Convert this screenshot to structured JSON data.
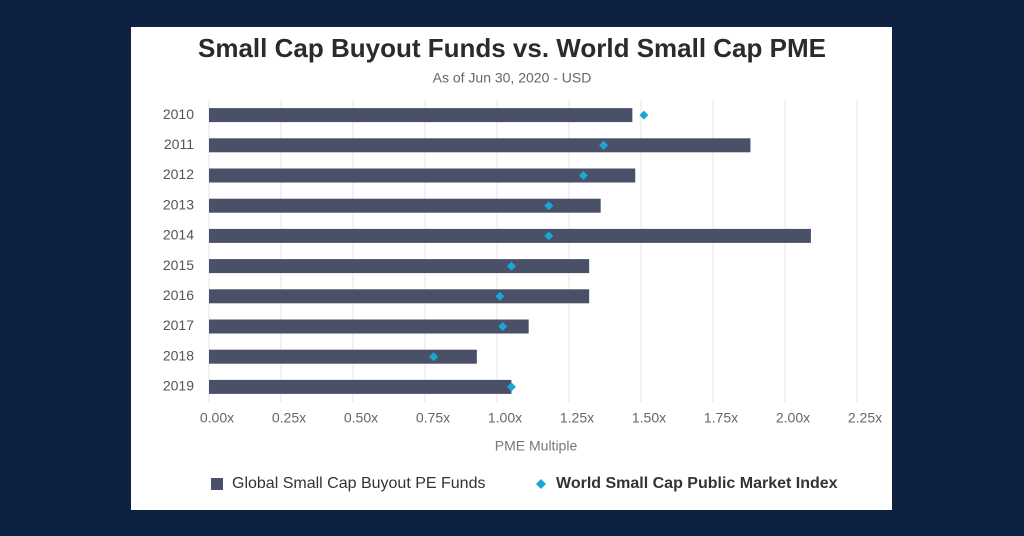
{
  "chart_data": {
    "type": "bar",
    "orientation": "horizontal",
    "title": "Small Cap Buyout Funds vs. World Small Cap PME",
    "subtitle": "As of Jun 30, 2020 - USD",
    "x_label": "PME Multiple",
    "categories": [
      "2010",
      "2011",
      "2012",
      "2013",
      "2014",
      "2015",
      "2016",
      "2017",
      "2018",
      "2019"
    ],
    "series": [
      {
        "name": "Global Small Cap Buyout PE Funds",
        "color": "#4a5068",
        "mark": "bar",
        "values": [
          1.47,
          1.88,
          1.48,
          1.36,
          2.09,
          1.32,
          1.32,
          1.11,
          0.93,
          1.05
        ]
      },
      {
        "name": "World Small Cap Public Market Index",
        "color": "#1aa7d6",
        "mark": "diamond",
        "values": [
          1.51,
          1.37,
          1.3,
          1.18,
          1.18,
          1.05,
          1.01,
          1.02,
          0.78,
          1.05
        ]
      }
    ],
    "xlim": [
      0,
      2.25
    ],
    "xticks": [
      {
        "value": 0,
        "label": "0.00x"
      },
      {
        "value": 0.25,
        "label": "0.25x"
      },
      {
        "value": 0.5,
        "label": "0.50x"
      },
      {
        "value": 0.75,
        "label": "0.75x"
      },
      {
        "value": 1,
        "label": "1.00x"
      },
      {
        "value": 1.25,
        "label": "1.25x"
      },
      {
        "value": 1.5,
        "label": "1.50x"
      },
      {
        "value": 1.75,
        "label": "1.75x"
      },
      {
        "value": 2,
        "label": "2.00x"
      },
      {
        "value": 2.25,
        "label": "2.25x"
      }
    ],
    "grid": true
  }
}
